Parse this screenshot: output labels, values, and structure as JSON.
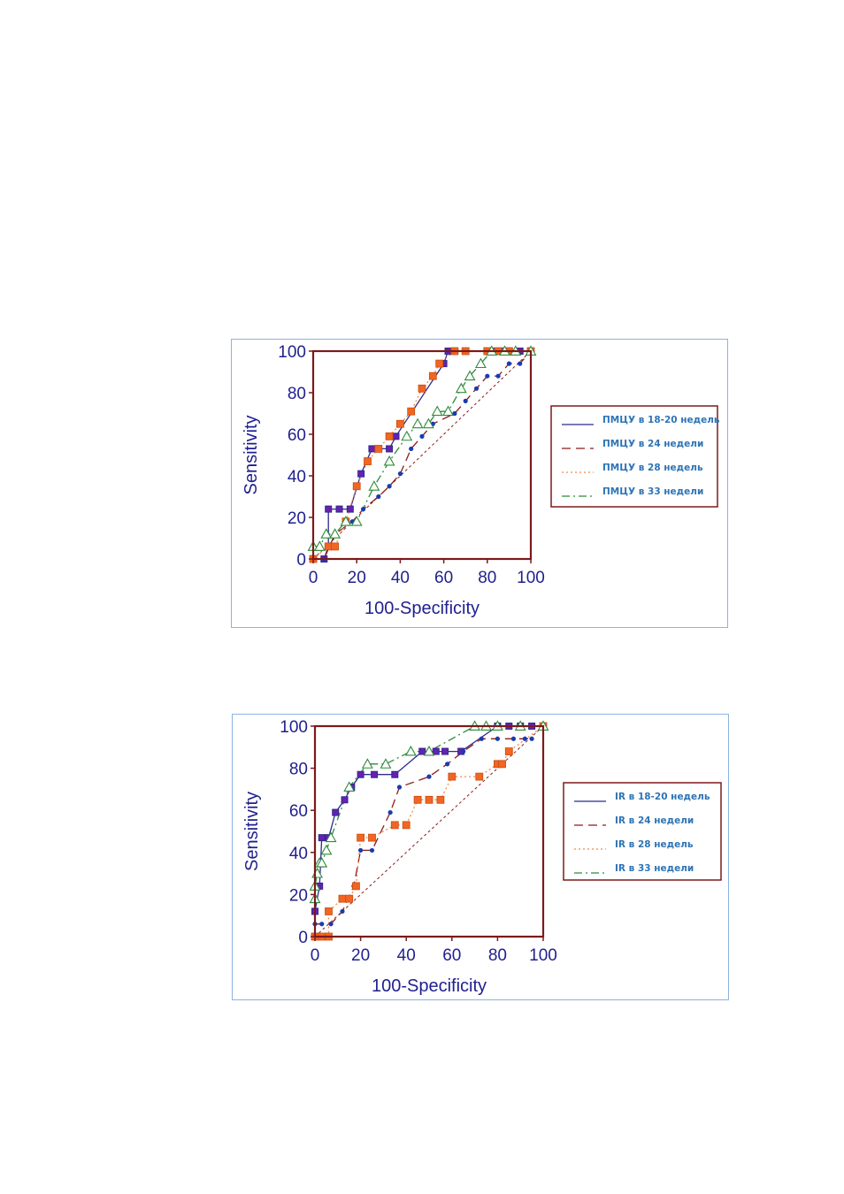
{
  "chart_data": [
    {
      "type": "line",
      "subtype": "ROC",
      "xlabel": "100-Specificity",
      "ylabel": "Sensitivity",
      "xlim": [
        0,
        100
      ],
      "ylim": [
        0,
        100
      ],
      "xticks": [
        "0",
        "20",
        "40",
        "60",
        "80",
        "100"
      ],
      "yticks": [
        "0",
        "20",
        "40",
        "60",
        "80",
        "100"
      ],
      "legend_position": "right",
      "grid": false,
      "frame_color": "#7b1a1a",
      "series": [
        {
          "name": "ПМЦУ в 18-20 недель",
          "color": "#2b2b8f",
          "dash": "solid",
          "marker": "square-purple",
          "x": [
            0,
            5,
            7,
            7,
            12,
            17,
            22,
            27,
            35,
            38,
            60,
            62,
            70,
            83,
            87,
            90,
            95,
            100
          ],
          "y": [
            0,
            0,
            6,
            24,
            24,
            24,
            41,
            53,
            53,
            59,
            94,
            100,
            100,
            100,
            100,
            100,
            100,
            100
          ]
        },
        {
          "name": "ПМЦУ в 24 недели",
          "color": "#8b1a1a",
          "dash": "longdash",
          "marker": "dot-blue",
          "x": [
            0,
            5,
            10,
            18,
            23,
            30,
            35,
            40,
            45,
            50,
            55,
            65,
            70,
            75,
            80,
            85,
            90,
            95,
            100
          ],
          "y": [
            0,
            0,
            12,
            18,
            24,
            30,
            35,
            41,
            53,
            59,
            65,
            70,
            76,
            82,
            88,
            88,
            94,
            94,
            100
          ]
        },
        {
          "name": "ПМЦУ в 28 недель",
          "color": "#f08a4b",
          "dash": "dotted",
          "marker": "square-orange",
          "x": [
            0,
            7,
            10,
            15,
            20,
            25,
            30,
            35,
            40,
            45,
            50,
            55,
            58,
            65,
            70,
            80,
            85,
            90,
            100
          ],
          "y": [
            0,
            6,
            6,
            18,
            35,
            47,
            53,
            59,
            65,
            71,
            82,
            88,
            94,
            100,
            100,
            100,
            100,
            100,
            100
          ]
        },
        {
          "name": "ПМЦУ в 33 недели",
          "color": "#2e8b3a",
          "dash": "dashdot",
          "marker": "triangle-green",
          "x": [
            0,
            3,
            6,
            10,
            15,
            20,
            28,
            35,
            43,
            48,
            53,
            57,
            62,
            68,
            72,
            77,
            82,
            88,
            93,
            100
          ],
          "y": [
            6,
            6,
            12,
            12,
            18,
            18,
            35,
            47,
            59,
            65,
            65,
            71,
            71,
            82,
            88,
            94,
            100,
            100,
            100,
            100
          ]
        }
      ]
    },
    {
      "type": "line",
      "subtype": "ROC",
      "xlabel": "100-Specificity",
      "ylabel": "Sensitivity",
      "xlim": [
        0,
        100
      ],
      "ylim": [
        0,
        100
      ],
      "xticks": [
        "0",
        "20",
        "40",
        "60",
        "80",
        "100"
      ],
      "yticks": [
        "0",
        "20",
        "40",
        "60",
        "80",
        "100"
      ],
      "legend_position": "right",
      "grid": false,
      "frame_color": "#7b1a1a",
      "series": [
        {
          "name": "IR в 18-20 недель",
          "color": "#2b2b8f",
          "dash": "solid",
          "marker": "square-purple",
          "x": [
            0,
            0,
            2,
            3,
            6,
            9,
            13,
            16,
            20,
            26,
            35,
            47,
            53,
            57,
            64,
            80,
            85,
            90,
            95,
            100
          ],
          "y": [
            0,
            12,
            24,
            47,
            47,
            59,
            65,
            71,
            77,
            77,
            77,
            88,
            88,
            88,
            88,
            100,
            100,
            100,
            100,
            100
          ]
        },
        {
          "name": "IR в 24 недели",
          "color": "#8b1a1a",
          "dash": "longdash",
          "marker": "dot-blue",
          "x": [
            0,
            3,
            7,
            12,
            17,
            20,
            25,
            33,
            37,
            50,
            58,
            65,
            73,
            80,
            87,
            92,
            95
          ],
          "y": [
            6,
            6,
            6,
            12,
            24,
            41,
            41,
            59,
            71,
            76,
            82,
            88,
            94,
            94,
            94,
            94,
            94
          ]
        },
        {
          "name": "IR в 28 недель",
          "color": "#f08a4b",
          "dash": "dotted",
          "marker": "square-orange",
          "x": [
            0,
            3,
            6,
            6,
            12,
            15,
            18,
            20,
            25,
            35,
            40,
            45,
            50,
            55,
            60,
            72,
            80,
            82,
            85,
            100
          ],
          "y": [
            0,
            0,
            0,
            12,
            18,
            18,
            24,
            47,
            47,
            53,
            53,
            65,
            65,
            65,
            76,
            76,
            82,
            82,
            88,
            100
          ]
        },
        {
          "name": "IR в 33 недели",
          "color": "#2e8b3a",
          "dash": "dashdot",
          "marker": "triangle-green",
          "x": [
            0,
            0,
            1,
            2,
            3,
            5,
            7,
            15,
            23,
            31,
            42,
            50,
            70,
            75,
            80,
            90,
            100
          ],
          "y": [
            18,
            24,
            30,
            35,
            35,
            41,
            47,
            71,
            82,
            82,
            88,
            88,
            100,
            100,
            100,
            100,
            100
          ]
        }
      ]
    }
  ]
}
